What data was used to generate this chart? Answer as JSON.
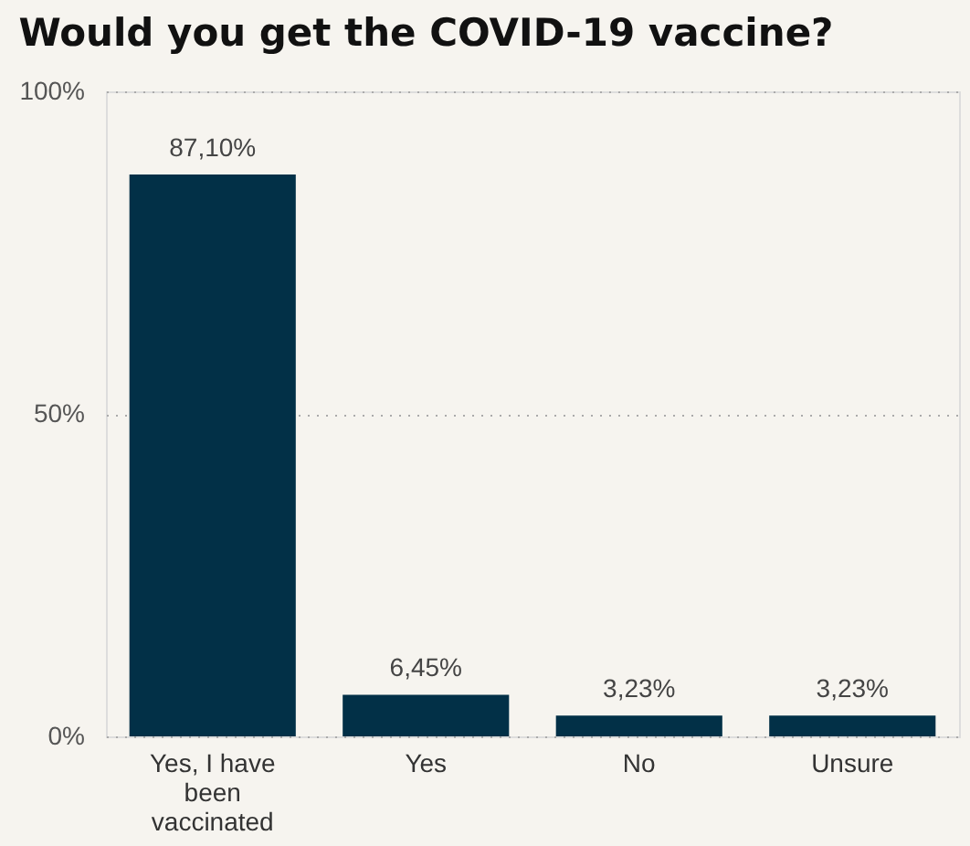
{
  "chart_data": {
    "type": "bar",
    "title": "Would you get the COVID-19 vaccine?",
    "categories": [
      "Yes, I have been vaccinated",
      "Yes",
      "No",
      "Unsure"
    ],
    "values": [
      87.1,
      6.45,
      3.23,
      3.23
    ],
    "value_labels": [
      "87,10%",
      "6,45%",
      "3,23%",
      "3,23%"
    ],
    "color": "#023047",
    "ylim": [
      0,
      100
    ],
    "yticks": [
      {
        "value": 0,
        "label": "0%"
      },
      {
        "value": 50,
        "label": "50%"
      },
      {
        "value": 100,
        "label": "100%"
      }
    ],
    "grid": "y"
  }
}
